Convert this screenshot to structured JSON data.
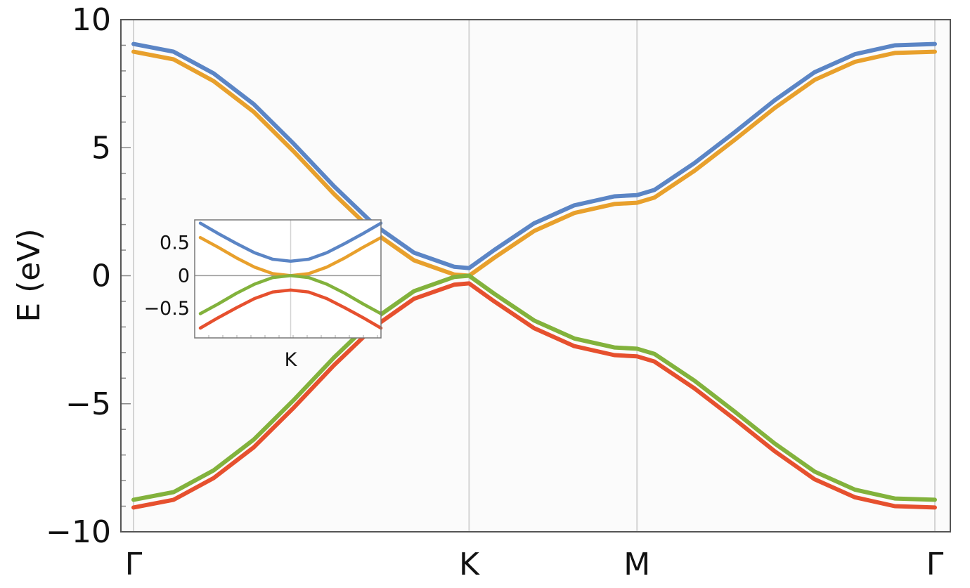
{
  "chart_data": [
    {
      "type": "line",
      "title": "",
      "xlabel": "",
      "ylabel": "E (eV)",
      "ylim": [
        -10,
        10
      ],
      "yticks": [
        "10",
        "5",
        "0",
        "−5",
        "−10"
      ],
      "ytick_values": [
        10,
        5,
        0,
        -5,
        -10
      ],
      "x_ticks": [
        {
          "label": "Γ",
          "pos": 0
        },
        {
          "label": "K",
          "pos": 0.4188
        },
        {
          "label": "M",
          "pos": 0.6283
        },
        {
          "label": "Γ",
          "pos": 1
        }
      ],
      "grid": "vertical lines at K and M",
      "series_colors": [
        "#5b85c5",
        "#e8a02c",
        "#82b23c",
        "#e6502e"
      ],
      "series": [
        {
          "color": "#5b85c5",
          "x": [
            0,
            0.05,
            0.1,
            0.15,
            0.2,
            0.25,
            0.3,
            0.35,
            0.4,
            0.4188,
            0.45,
            0.5,
            0.55,
            0.6,
            0.6283,
            0.65,
            0.7,
            0.75,
            0.8,
            0.85,
            0.9,
            0.95,
            1
          ],
          "values": [
            9.05,
            8.75,
            7.9,
            6.7,
            5.15,
            3.5,
            2.0,
            0.9,
            0.35,
            0.3,
            1.0,
            2.05,
            2.75,
            3.1,
            3.15,
            3.35,
            4.4,
            5.6,
            6.85,
            7.95,
            8.65,
            9.0,
            9.05
          ]
        },
        {
          "color": "#e8a02c",
          "x": [
            0,
            0.05,
            0.1,
            0.15,
            0.2,
            0.25,
            0.3,
            0.35,
            0.4,
            0.4188,
            0.45,
            0.5,
            0.55,
            0.6,
            0.6283,
            0.65,
            0.7,
            0.75,
            0.8,
            0.85,
            0.9,
            0.95,
            1
          ],
          "values": [
            8.75,
            8.45,
            7.6,
            6.4,
            4.85,
            3.2,
            1.7,
            0.6,
            0.05,
            0.0,
            0.7,
            1.75,
            2.45,
            2.8,
            2.85,
            3.05,
            4.1,
            5.3,
            6.55,
            7.65,
            8.35,
            8.7,
            8.75
          ]
        },
        {
          "color": "#82b23c",
          "x": [
            0,
            0.05,
            0.1,
            0.15,
            0.2,
            0.25,
            0.3,
            0.35,
            0.4,
            0.4188,
            0.45,
            0.5,
            0.55,
            0.6,
            0.6283,
            0.65,
            0.7,
            0.75,
            0.8,
            0.85,
            0.9,
            0.95,
            1
          ],
          "values": [
            -8.75,
            -8.45,
            -7.6,
            -6.4,
            -4.85,
            -3.2,
            -1.7,
            -0.6,
            -0.05,
            0.0,
            -0.7,
            -1.75,
            -2.45,
            -2.8,
            -2.85,
            -3.05,
            -4.1,
            -5.3,
            -6.55,
            -7.65,
            -8.35,
            -8.7,
            -8.75
          ]
        },
        {
          "color": "#e6502e",
          "x": [
            0,
            0.05,
            0.1,
            0.15,
            0.2,
            0.25,
            0.3,
            0.35,
            0.4,
            0.4188,
            0.45,
            0.5,
            0.55,
            0.6,
            0.6283,
            0.65,
            0.7,
            0.75,
            0.8,
            0.85,
            0.9,
            0.95,
            1
          ],
          "values": [
            -9.05,
            -8.75,
            -7.9,
            -6.7,
            -5.15,
            -3.5,
            -2.0,
            -0.9,
            -0.35,
            -0.3,
            -1.0,
            -2.05,
            -2.75,
            -3.1,
            -3.15,
            -3.35,
            -4.4,
            -5.6,
            -6.85,
            -7.95,
            -8.65,
            -9.0,
            -9.05
          ]
        }
      ]
    },
    {
      "type": "line",
      "title": "",
      "inset": true,
      "xlabel": "",
      "ylabel": "",
      "ylim": [
        -0.95,
        0.85
      ],
      "yticks": [
        "0.5",
        "0",
        "−0.5"
      ],
      "ytick_values": [
        0.5,
        0,
        -0.5
      ],
      "x_ticks": [
        {
          "label": "K",
          "pos": 0
        }
      ],
      "xlim": [
        -1,
        1
      ],
      "zero_line": true,
      "series": [
        {
          "color": "#5b85c5",
          "x": [
            -1,
            -0.8,
            -0.6,
            -0.4,
            -0.2,
            0,
            0.2,
            0.4,
            0.6,
            0.8,
            1
          ],
          "values": [
            0.8,
            0.64,
            0.49,
            0.35,
            0.25,
            0.22,
            0.25,
            0.35,
            0.49,
            0.64,
            0.8
          ]
        },
        {
          "color": "#e8a02c",
          "x": [
            -1,
            -0.8,
            -0.6,
            -0.4,
            -0.2,
            0,
            0.2,
            0.4,
            0.6,
            0.8,
            1
          ],
          "values": [
            0.58,
            0.43,
            0.27,
            0.13,
            0.03,
            0.0,
            0.03,
            0.13,
            0.27,
            0.43,
            0.58
          ]
        },
        {
          "color": "#82b23c",
          "x": [
            -1,
            -0.8,
            -0.6,
            -0.4,
            -0.2,
            0,
            0.2,
            0.4,
            0.6,
            0.8,
            1
          ],
          "values": [
            -0.58,
            -0.43,
            -0.27,
            -0.13,
            -0.03,
            0.0,
            -0.03,
            -0.13,
            -0.27,
            -0.43,
            -0.58
          ]
        },
        {
          "color": "#e6502e",
          "x": [
            -1,
            -0.8,
            -0.6,
            -0.4,
            -0.2,
            0,
            0.2,
            0.4,
            0.6,
            0.8,
            1
          ],
          "values": [
            -0.8,
            -0.64,
            -0.49,
            -0.35,
            -0.25,
            -0.22,
            -0.25,
            -0.35,
            -0.49,
            -0.64,
            -0.8
          ]
        }
      ]
    }
  ]
}
